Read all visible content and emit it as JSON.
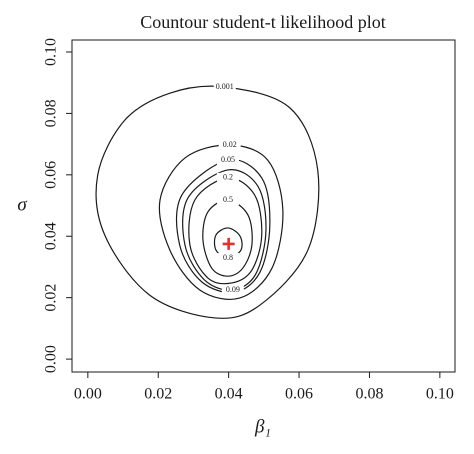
{
  "chart_data": {
    "type": "contour",
    "title": "Countour student-t likelihood plot",
    "x_label": "β₁",
    "y_label": "σ",
    "xlim": [
      -0.0045,
      0.1043
    ],
    "ylim": [
      -0.0042,
      0.1039
    ],
    "xticks": [
      {
        "value": 0,
        "label": "0.00"
      },
      {
        "value": 0.02,
        "label": "0.02"
      },
      {
        "value": 0.04,
        "label": "0.04"
      },
      {
        "value": 0.06,
        "label": "0.06"
      },
      {
        "value": 0.08,
        "label": "0.08"
      },
      {
        "value": 0.1,
        "label": "0.10"
      }
    ],
    "yticks": [
      {
        "value": 0,
        "label": "0.00"
      },
      {
        "value": 0.02,
        "label": "0.02"
      },
      {
        "value": 0.04,
        "label": "0.04"
      },
      {
        "value": 0.06,
        "label": "0.06"
      },
      {
        "value": 0.08,
        "label": "0.08"
      },
      {
        "value": 0.1,
        "label": "0.10"
      }
    ],
    "color": "#1a1a1a",
    "series": [
      {
        "level": 0.001,
        "x": [
          0.0389,
          0.0574,
          0.0653,
          0.0625,
          0.0489,
          0.0361,
          0.0176,
          0.0048,
          0.0028,
          0.0105,
          0.0233
        ],
        "y": [
          0.0886,
          0.0818,
          0.0616,
          0.0355,
          0.0176,
          0.0134,
          0.0208,
          0.0404,
          0.0599,
          0.0778,
          0.0866
        ]
      },
      {
        "level": 0.02,
        "x": [
          0.0403,
          0.0511,
          0.0554,
          0.0523,
          0.0432,
          0.0318,
          0.0233,
          0.0205,
          0.0276
        ],
        "y": [
          0.0697,
          0.0648,
          0.0485,
          0.0296,
          0.0199,
          0.0225,
          0.0355,
          0.0518,
          0.0655
        ]
      },
      {
        "level": 0.05,
        "x": [
          0.0398,
          0.0494,
          0.0517,
          0.0489,
          0.0418,
          0.0324,
          0.0261,
          0.0267
        ],
        "y": [
          0.0648,
          0.059,
          0.0436,
          0.0283,
          0.0218,
          0.0251,
          0.0371,
          0.0534
        ]
      },
      {
        "level": 0.09,
        "x": [
          0.0398,
          0.0483,
          0.0506,
          0.0477,
          0.0412,
          0.0332,
          0.0276,
          0.0284
        ],
        "y": [
          0.0616,
          0.0563,
          0.042,
          0.0277,
          0.0225,
          0.0257,
          0.0371,
          0.0524
        ]
      },
      {
        "level": 0.2,
        "x": [
          0.0398,
          0.0474,
          0.0494,
          0.0466,
          0.0409,
          0.0341,
          0.029,
          0.0304
        ],
        "y": [
          0.059,
          0.0534,
          0.0404,
          0.029,
          0.0248,
          0.0264,
          0.0371,
          0.0518
        ]
      },
      {
        "level": 0.5,
        "x": [
          0.0398,
          0.0455,
          0.0466,
          0.044,
          0.0398,
          0.0352,
          0.0327,
          0.0341
        ],
        "y": [
          0.0518,
          0.0469,
          0.0371,
          0.0296,
          0.027,
          0.0296,
          0.0388,
          0.0479
        ]
      },
      {
        "level": 0.8,
        "x": [
          0.0398,
          0.0432,
          0.0435,
          0.0398,
          0.0364,
          0.0364
        ],
        "y": [
          0.0427,
          0.0401,
          0.0355,
          0.0329,
          0.0355,
          0.0404
        ]
      }
    ],
    "mle": {
      "x": 0.04,
      "y": 0.0375,
      "color": "#e0312a"
    }
  }
}
